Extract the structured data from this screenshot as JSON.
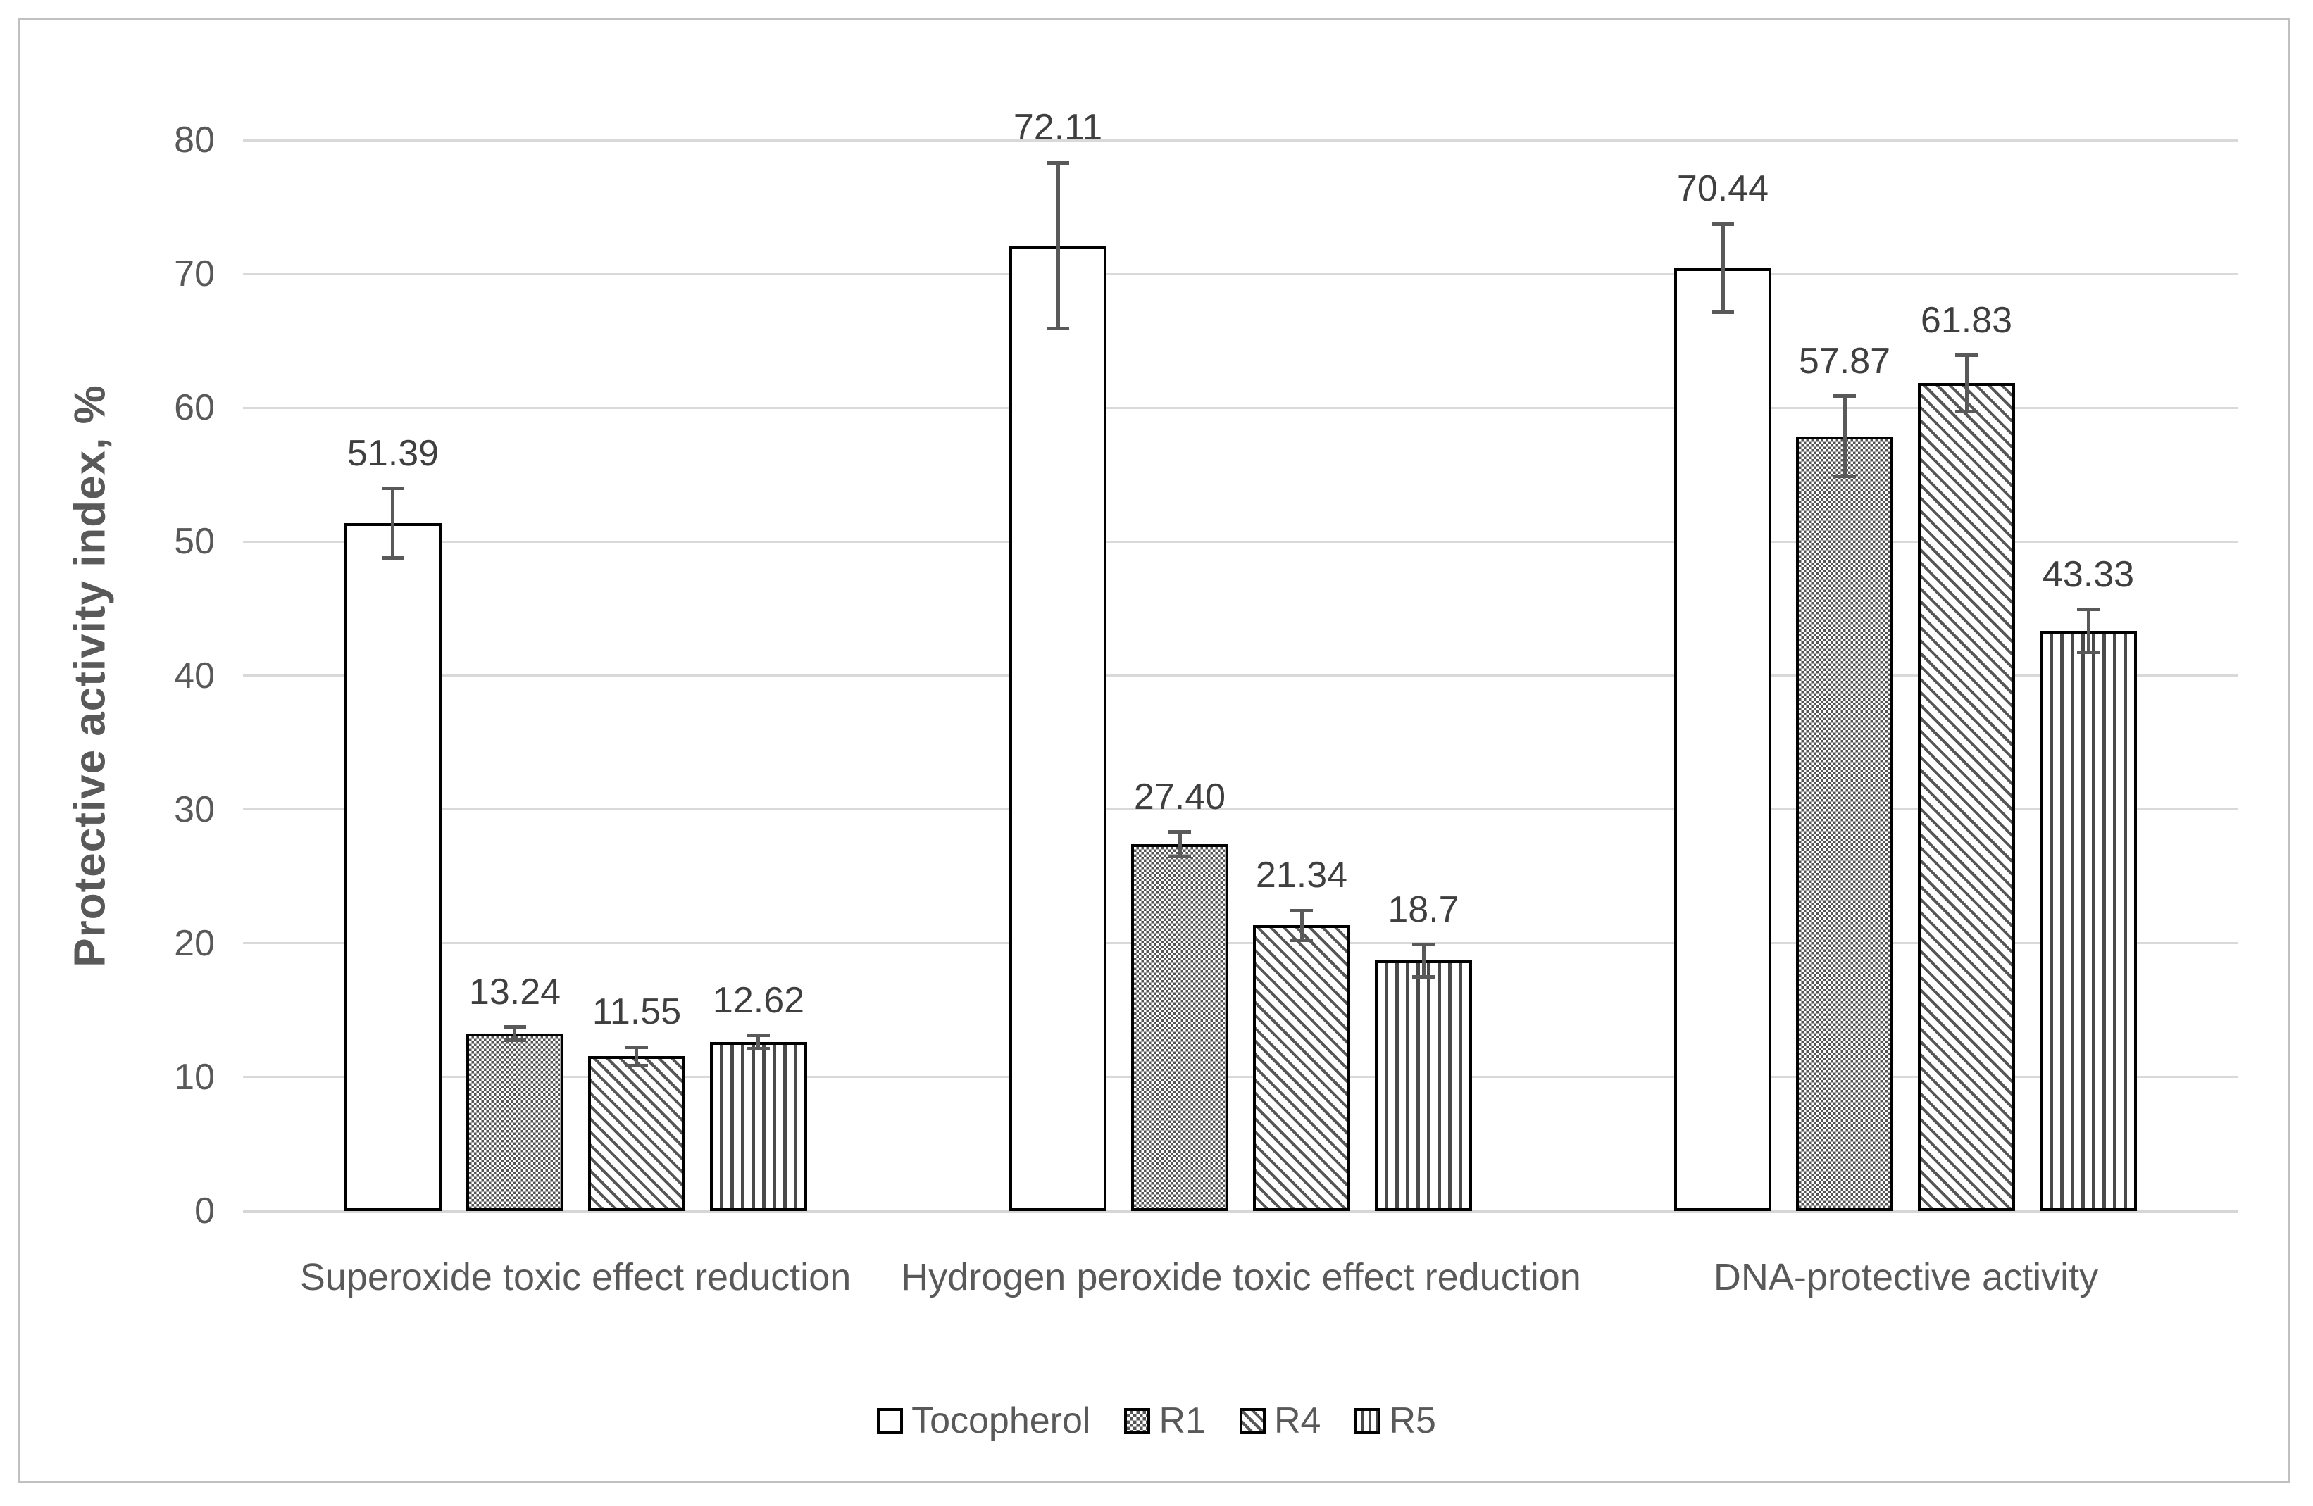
{
  "figure": {
    "background": "#ffffff",
    "border_color": "#c0c0c0"
  },
  "chart_data": {
    "type": "bar",
    "title": "",
    "ylabel": "Protective activity index, %",
    "xlabel": "",
    "ylim": [
      0,
      80
    ],
    "yticks": [
      0,
      10,
      20,
      30,
      40,
      50,
      60,
      70,
      80
    ],
    "grid": "horizontal",
    "legend_position": "bottom",
    "categories": [
      "Superoxide toxic effect reduction",
      "Hydrogen peroxide toxic effect reduction",
      "DNA-protective activity"
    ],
    "series": [
      {
        "name": "Tocopherol",
        "pattern": "plain",
        "values": [
          51.39,
          72.11,
          70.44
        ],
        "value_labels": [
          "51.39",
          "72.11",
          "70.44"
        ],
        "errors": [
          2.6,
          6.2,
          3.3
        ]
      },
      {
        "name": "R1",
        "pattern": "checkerboard",
        "values": [
          13.24,
          27.4,
          57.87
        ],
        "value_labels": [
          "13.24",
          "27.40",
          "57.87"
        ],
        "errors": [
          0.5,
          0.9,
          3.0
        ]
      },
      {
        "name": "R4",
        "pattern": "diagonal-hatch",
        "values": [
          11.55,
          21.34,
          61.83
        ],
        "value_labels": [
          "11.55",
          "21.34",
          "61.83"
        ],
        "errors": [
          0.7,
          1.1,
          2.1
        ]
      },
      {
        "name": "R5",
        "pattern": "vertical-lines",
        "values": [
          12.62,
          18.7,
          43.33
        ],
        "value_labels": [
          "12.62",
          "18.7",
          "43.33"
        ],
        "errors": [
          0.5,
          1.2,
          1.6
        ]
      }
    ],
    "colors": {
      "bar_border": "#000000",
      "hatch": "#555555",
      "error_bar": "#595959",
      "gridline": "#d9d9d9",
      "axis_line": "#d6d6d6",
      "tick_text": "#595959",
      "value_text": "#3f3f3f",
      "category_text": "#595959",
      "legend_text": "#595959"
    }
  }
}
